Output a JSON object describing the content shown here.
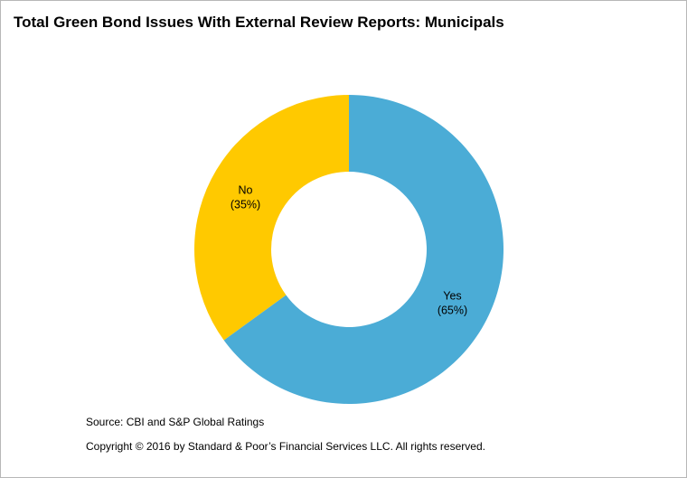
{
  "chart_data": {
    "type": "pie",
    "title": "Total Green Bond Issues With External Review Reports: Municipals",
    "donut": true,
    "slices": [
      {
        "label": "Yes",
        "value": 65,
        "value_label": "(65%)",
        "color": "#4bacd6"
      },
      {
        "label": "No",
        "value": 35,
        "value_label": "(35%)",
        "color": "#ffc900"
      }
    ],
    "start": "12 o'clock",
    "direction": "clockwise"
  },
  "footer": {
    "source": "Source: CBI and S&P  Global Ratings",
    "copyright": "Copyright © 2016 by Standard & Poor’s Financial Services LLC. All rights reserved."
  }
}
